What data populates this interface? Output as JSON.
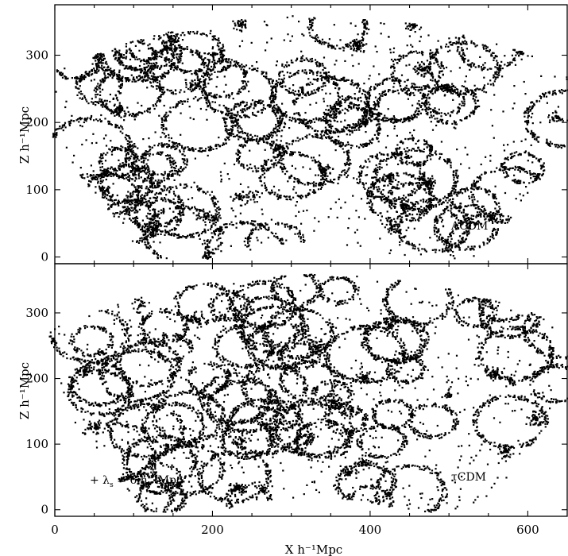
{
  "chart_data": [
    {
      "type": "scatter",
      "panel": "top",
      "label": "ΛCDM",
      "xlim": [
        0,
        650
      ],
      "ylim": [
        -10,
        375
      ],
      "xticks": [
        0,
        200,
        400,
        600
      ],
      "yticks": [
        0,
        100,
        200,
        300
      ],
      "ylabel": "Z h⁻¹Mpc",
      "fan": {
        "apex": [
          325,
          -330
        ],
        "r_inner": 350,
        "r_outer": 690,
        "half_angle_deg": 33
      },
      "seed": 17
    },
    {
      "type": "scatter",
      "panel": "bottom",
      "label": "τCDM",
      "annotation": "+ λ",
      "annotation_sub": "s",
      "annotation_rest": " = 6 h⁻¹Mpc",
      "xlim": [
        0,
        650
      ],
      "ylim": [
        -10,
        375
      ],
      "xticks": [
        0,
        200,
        400,
        600
      ],
      "xticklabels": [
        "0",
        "200",
        "400",
        "600"
      ],
      "yticks": [
        0,
        100,
        200,
        300
      ],
      "ylabel": "Z h⁻¹Mpc",
      "xlabel": "X h⁻¹Mpc",
      "fan": {
        "apex": [
          325,
          -330
        ],
        "r_inner": 350,
        "r_outer": 690,
        "half_angle_deg": 33
      },
      "seed": 91
    }
  ]
}
